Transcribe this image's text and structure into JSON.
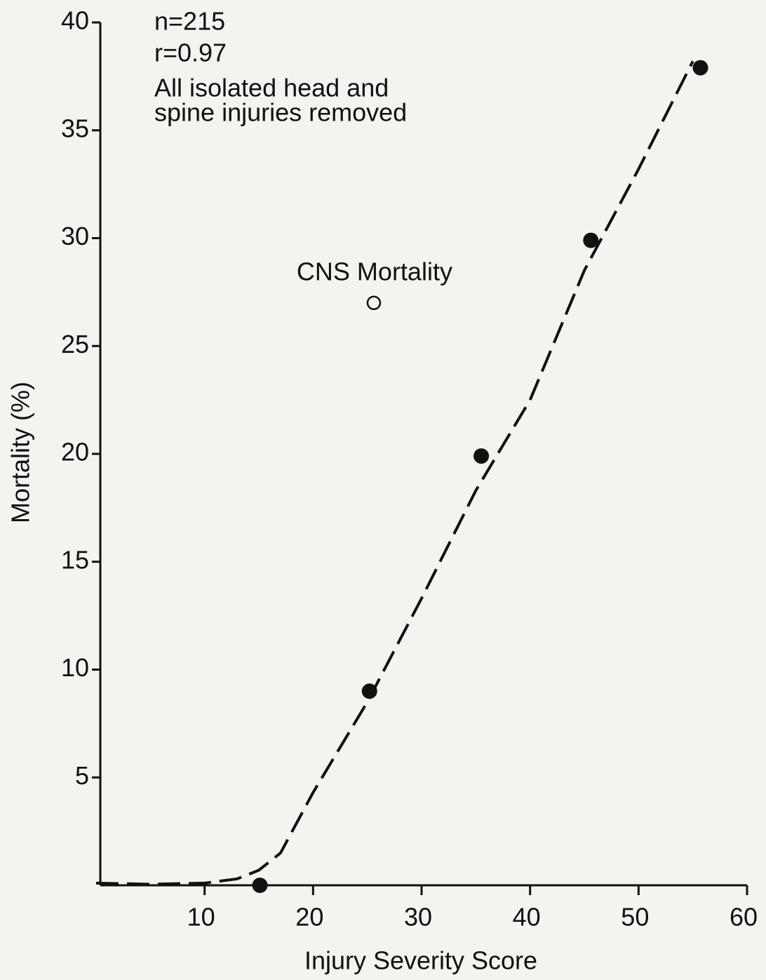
{
  "chart_data": {
    "type": "scatter",
    "notes": [
      "n=215",
      "r=0.97",
      "All isolated head and",
      "spine injuries removed"
    ],
    "xlabel": "Injury Severity Score",
    "ylabel": "Mortality (%)",
    "xlim": [
      0,
      60
    ],
    "xticks": [
      10,
      20,
      30,
      40,
      50,
      60
    ],
    "ylim": [
      0,
      40
    ],
    "yticks": [
      5,
      10,
      15,
      20,
      25,
      30,
      35,
      40
    ],
    "color": "#111111",
    "points": {
      "x": [
        15.1,
        25.2,
        35.5,
        45.6,
        55.7
      ],
      "y": [
        0,
        9,
        19.9,
        29.9,
        37.9
      ]
    },
    "cns_point": {
      "label": "CNS Mortality",
      "x": 25.6,
      "y": 27
    },
    "fit": {
      "x": [
        0,
        5,
        10,
        13,
        15,
        17,
        20,
        25,
        30,
        35,
        40,
        45,
        50,
        55
      ],
      "y": [
        0.1,
        0.05,
        0.1,
        0.3,
        0.7,
        1.5,
        4.3,
        8.5,
        13.3,
        18.3,
        22.5,
        28.5,
        33.2,
        38.2
      ]
    }
  }
}
